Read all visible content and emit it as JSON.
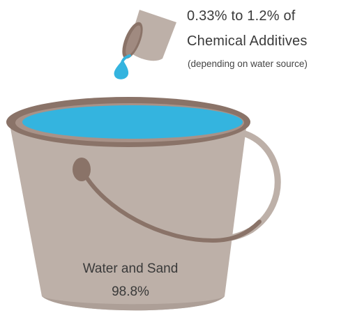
{
  "additives": {
    "line1": "0.33% to 1.2% of",
    "line2": "Chemical Additives",
    "note": "(depending on water source)"
  },
  "bucket": {
    "line1": "Water and Sand",
    "line2": "98.8%"
  },
  "colors": {
    "bucket_body": "#bdb0a8",
    "bucket_rim": "#8a7368",
    "handle": "#a08a80",
    "water": "#34b4df",
    "cup": "#bdb0a8",
    "cup_inner": "#8a7368"
  }
}
